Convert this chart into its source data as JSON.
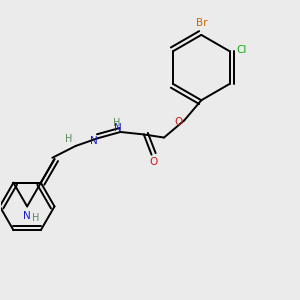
{
  "background_color": "#ebebeb",
  "atom_colors": {
    "C": "#000000",
    "H": "#5a8a5a",
    "N": "#1a1acc",
    "O": "#cc1a1a",
    "Br": "#cc6600",
    "Cl": "#11aa11"
  },
  "figsize": [
    3.0,
    3.0
  ],
  "dpi": 100
}
